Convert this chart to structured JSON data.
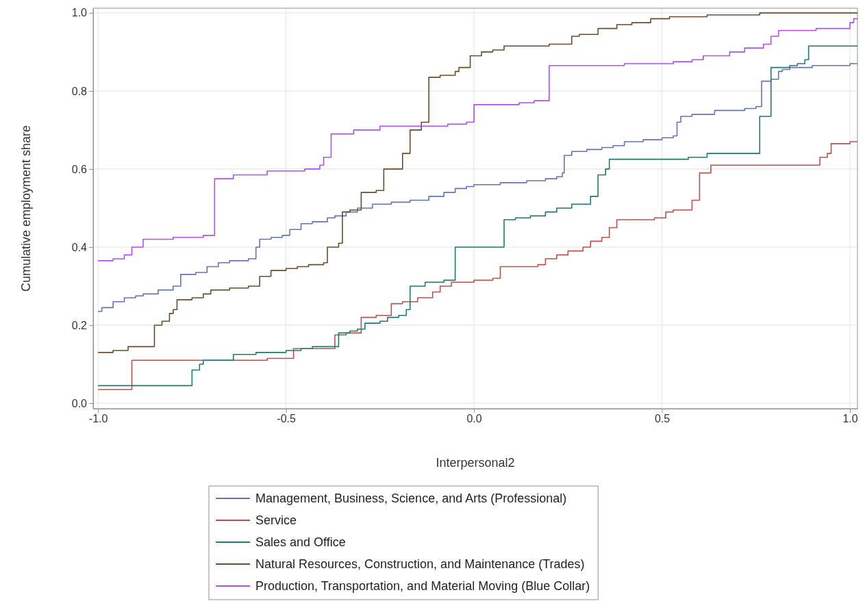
{
  "chart_data": {
    "type": "step",
    "xlabel": "Interpersonal2",
    "ylabel": "Cumulative employment share",
    "xlim": [
      -1.013,
      1.02
    ],
    "ylim": [
      -0.014,
      1.012
    ],
    "xticks": [
      {
        "value": -1,
        "label": "-1.0"
      },
      -0.5,
      {
        "value": 0,
        "label": "0.0"
      },
      0.5,
      {
        "value": 1,
        "label": "1.0"
      }
    ],
    "yticks": [
      {
        "value": 0,
        "label": "0.0"
      },
      0.2,
      0.4,
      0.6,
      0.8,
      {
        "value": 1,
        "label": "1.0"
      }
    ],
    "grid": true,
    "legend": "bottom",
    "line_style": "solid",
    "marker": "none",
    "series": [
      {
        "name": "Management, Business, Science, and Arts (Professional)",
        "color": "#6373b6",
        "x": [
          -1.0,
          -0.99,
          -0.96,
          -0.93,
          -0.9,
          -0.88,
          -0.84,
          -0.8,
          -0.78,
          -0.74,
          -0.71,
          -0.68,
          -0.65,
          -0.6,
          -0.58,
          -0.57,
          -0.54,
          -0.51,
          -0.49,
          -0.46,
          -0.43,
          -0.39,
          -0.37,
          -0.34,
          -0.31,
          -0.27,
          -0.22,
          -0.17,
          -0.12,
          -0.08,
          -0.05,
          -0.02,
          0.0,
          0.07,
          0.14,
          0.19,
          0.22,
          0.235,
          0.24,
          0.26,
          0.3,
          0.34,
          0.37,
          0.4,
          0.45,
          0.5,
          0.53,
          0.54,
          0.55,
          0.58,
          0.64,
          0.72,
          0.75,
          0.765,
          0.79,
          0.81,
          0.82,
          0.84,
          0.9,
          1.0,
          1.02
        ],
        "values": [
          0.235,
          0.245,
          0.26,
          0.27,
          0.275,
          0.28,
          0.29,
          0.3,
          0.33,
          0.335,
          0.35,
          0.36,
          0.365,
          0.37,
          0.4,
          0.42,
          0.425,
          0.43,
          0.445,
          0.46,
          0.465,
          0.475,
          0.48,
          0.49,
          0.5,
          0.51,
          0.515,
          0.52,
          0.53,
          0.54,
          0.55,
          0.555,
          0.56,
          0.565,
          0.57,
          0.575,
          0.58,
          0.59,
          0.635,
          0.645,
          0.65,
          0.655,
          0.66,
          0.67,
          0.675,
          0.68,
          0.685,
          0.72,
          0.735,
          0.74,
          0.75,
          0.755,
          0.76,
          0.825,
          0.83,
          0.85,
          0.855,
          0.86,
          0.865,
          0.87,
          0.87
        ]
      },
      {
        "name": "Service",
        "color": "#b9524a",
        "x": [
          -1.0,
          -0.91,
          -0.55,
          -0.48,
          -0.37,
          -0.34,
          -0.3,
          -0.26,
          -0.22,
          -0.19,
          -0.15,
          -0.11,
          -0.09,
          -0.06,
          0.0,
          0.05,
          0.07,
          0.17,
          0.19,
          0.22,
          0.25,
          0.29,
          0.31,
          0.34,
          0.36,
          0.38,
          0.48,
          0.51,
          0.53,
          0.58,
          0.6,
          0.63,
          0.92,
          0.94,
          0.95,
          1.0,
          1.02
        ],
        "values": [
          0.035,
          0.11,
          0.115,
          0.14,
          0.175,
          0.18,
          0.22,
          0.225,
          0.255,
          0.26,
          0.27,
          0.285,
          0.3,
          0.31,
          0.315,
          0.32,
          0.35,
          0.355,
          0.37,
          0.38,
          0.39,
          0.4,
          0.415,
          0.425,
          0.45,
          0.47,
          0.475,
          0.49,
          0.495,
          0.52,
          0.59,
          0.61,
          0.63,
          0.64,
          0.665,
          0.67,
          0.67
        ]
      },
      {
        "name": "Sales and Office",
        "color": "#1d7a6e",
        "x": [
          -1.0,
          -0.75,
          -0.73,
          -0.72,
          -0.64,
          -0.58,
          -0.5,
          -0.46,
          -0.43,
          -0.36,
          -0.33,
          -0.31,
          -0.29,
          -0.25,
          -0.23,
          -0.2,
          -0.18,
          -0.17,
          -0.13,
          -0.08,
          -0.05,
          0.08,
          0.11,
          0.15,
          0.19,
          0.22,
          0.26,
          0.31,
          0.33,
          0.35,
          0.36,
          0.57,
          0.62,
          0.76,
          0.79,
          0.84,
          0.86,
          0.88,
          0.89,
          1.02
        ],
        "values": [
          0.045,
          0.085,
          0.1,
          0.11,
          0.125,
          0.13,
          0.135,
          0.14,
          0.145,
          0.18,
          0.185,
          0.19,
          0.205,
          0.21,
          0.22,
          0.225,
          0.24,
          0.3,
          0.31,
          0.315,
          0.4,
          0.47,
          0.475,
          0.48,
          0.49,
          0.5,
          0.51,
          0.53,
          0.585,
          0.6,
          0.625,
          0.63,
          0.64,
          0.735,
          0.86,
          0.865,
          0.87,
          0.88,
          0.915,
          0.915
        ]
      },
      {
        "name": "Natural Resources, Construction, and Maintenance (Trades)",
        "color": "#6b4c2a",
        "x": [
          -1.0,
          -0.96,
          -0.92,
          -0.85,
          -0.83,
          -0.81,
          -0.8,
          -0.79,
          -0.75,
          -0.72,
          -0.7,
          -0.65,
          -0.6,
          -0.57,
          -0.54,
          -0.5,
          -0.47,
          -0.44,
          -0.4,
          -0.39,
          -0.36,
          -0.35,
          -0.33,
          -0.3,
          -0.26,
          -0.24,
          -0.19,
          -0.17,
          -0.14,
          -0.12,
          -0.09,
          -0.05,
          -0.04,
          -0.01,
          0.02,
          0.05,
          0.08,
          0.2,
          0.26,
          0.28,
          0.33,
          0.38,
          0.42,
          0.47,
          0.52,
          0.62,
          0.76,
          1.02
        ],
        "values": [
          0.13,
          0.135,
          0.145,
          0.2,
          0.21,
          0.23,
          0.24,
          0.265,
          0.27,
          0.28,
          0.29,
          0.295,
          0.3,
          0.325,
          0.34,
          0.345,
          0.35,
          0.355,
          0.36,
          0.4,
          0.41,
          0.49,
          0.495,
          0.54,
          0.545,
          0.6,
          0.64,
          0.7,
          0.72,
          0.835,
          0.84,
          0.85,
          0.86,
          0.89,
          0.9,
          0.905,
          0.915,
          0.92,
          0.94,
          0.945,
          0.96,
          0.97,
          0.975,
          0.985,
          0.99,
          0.995,
          1.0,
          1.0
        ]
      },
      {
        "name": "Production, Transportation, and Material Moving (Blue Collar)",
        "color": "#b24cf5",
        "x": [
          -1.0,
          -0.96,
          -0.93,
          -0.91,
          -0.88,
          -0.8,
          -0.72,
          -0.69,
          -0.64,
          -0.55,
          -0.45,
          -0.41,
          -0.4,
          -0.38,
          -0.32,
          -0.25,
          -0.07,
          -0.02,
          0.0,
          0.12,
          0.16,
          0.2,
          0.4,
          0.53,
          0.58,
          0.61,
          0.68,
          0.72,
          0.77,
          0.79,
          0.81,
          0.91,
          1.0,
          1.01,
          1.02
        ],
        "values": [
          0.365,
          0.37,
          0.38,
          0.4,
          0.42,
          0.425,
          0.43,
          0.575,
          0.585,
          0.595,
          0.6,
          0.61,
          0.63,
          0.69,
          0.7,
          0.71,
          0.715,
          0.72,
          0.765,
          0.77,
          0.775,
          0.865,
          0.87,
          0.875,
          0.88,
          0.89,
          0.9,
          0.91,
          0.92,
          0.94,
          0.955,
          0.96,
          0.975,
          0.985,
          0.985
        ]
      }
    ]
  }
}
